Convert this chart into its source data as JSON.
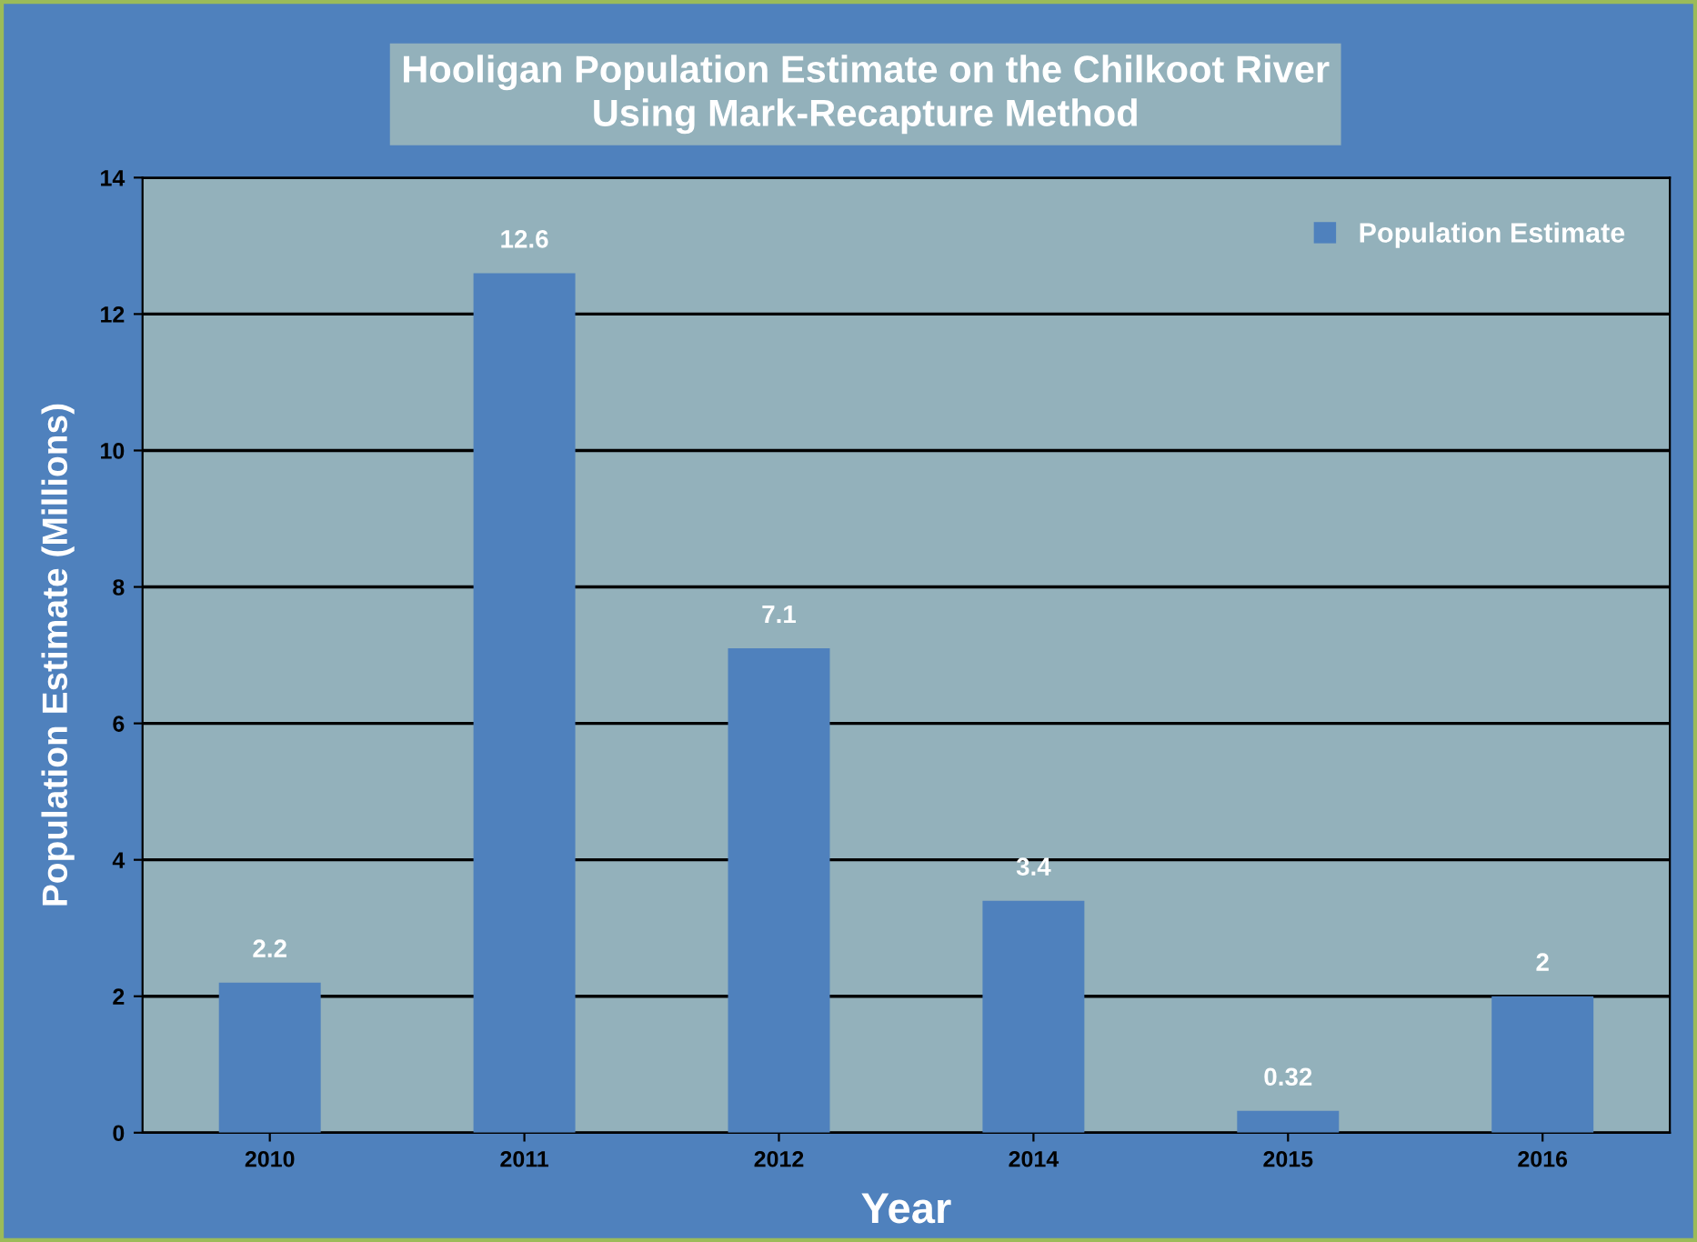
{
  "chart_data": {
    "type": "bar",
    "title": "Hooligan Population Estimate on the Chilkoot River\nUsing Mark-Recapture Method",
    "xlabel": "Year",
    "ylabel": "Population Estimate (Millions)",
    "categories": [
      "2010",
      "2011",
      "2012",
      "2014",
      "2015",
      "2016"
    ],
    "series": [
      {
        "name": "Population Estimate",
        "color": "#4f81bd",
        "values": [
          2.2,
          12.6,
          7.1,
          3.4,
          0.32,
          2
        ]
      }
    ],
    "ylim": [
      0,
      14
    ],
    "yticks": [
      0,
      2,
      4,
      6,
      8,
      10,
      12,
      14
    ],
    "grid": "y",
    "legend": "top right",
    "data_labels": true
  }
}
